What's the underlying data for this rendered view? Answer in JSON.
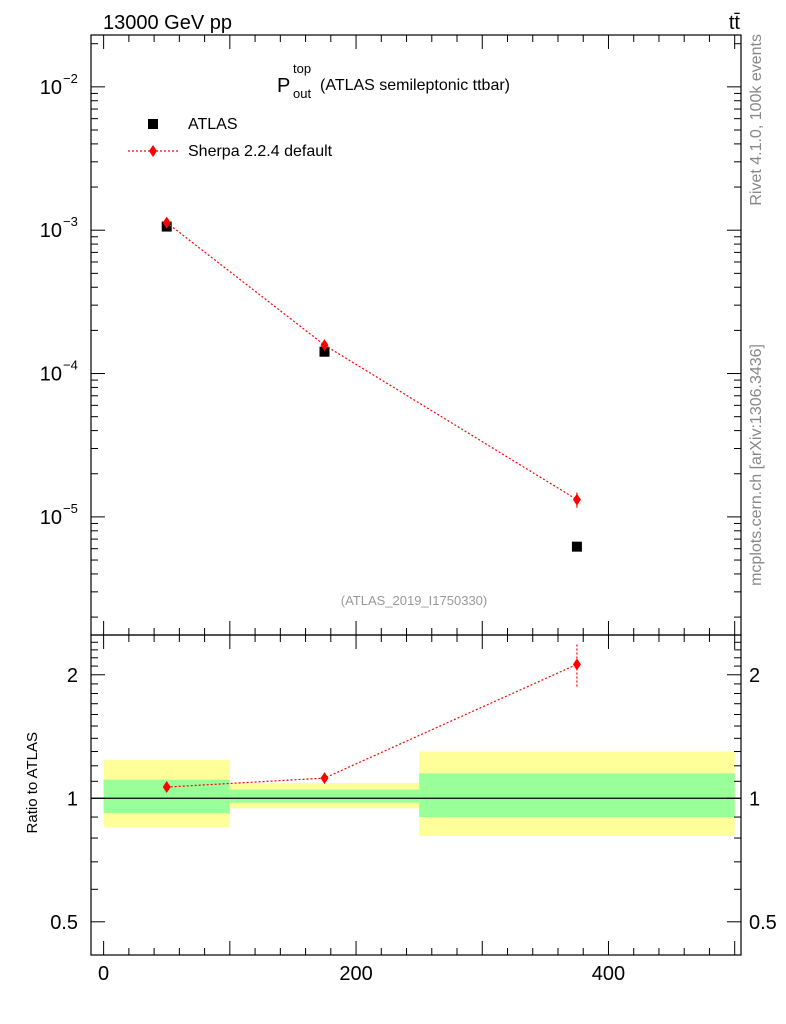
{
  "header": {
    "left": "13000 GeV pp",
    "right": "tt̄",
    "side_top": "Rivet 4.1.0,  100k events",
    "side_bottom": "mcplots.cern.ch [arXiv:1306.3436]"
  },
  "chart_data": [
    {
      "type": "scatter",
      "title_main": "P",
      "title_sup": "top",
      "title_sub": "out",
      "title_rest": "(ATLAS semileptonic ttbar)",
      "watermark": "(ATLAS_2019_I1750330)",
      "yscale": "log",
      "ylim": [
        1.5e-06,
        0.023
      ],
      "xlim": [
        -10,
        505
      ],
      "ytick_values": [
        1e-05,
        0.0001,
        0.001,
        0.01
      ],
      "ytick_bases": [
        "10",
        "10",
        "10",
        "10"
      ],
      "ytick_exps": [
        "−5",
        "−4",
        "−3",
        "−2"
      ],
      "legend": {
        "position": "top-left",
        "entries": [
          "ATLAS",
          "Sherpa 2.2.4 default"
        ]
      },
      "series": [
        {
          "name": "ATLAS",
          "x": [
            50,
            175,
            375
          ],
          "y": [
            0.00106,
            0.000142,
            6.2e-06
          ],
          "color": "#000000",
          "marker": "square"
        },
        {
          "name": "Sherpa 2.2.4 default",
          "x": [
            50,
            175,
            375
          ],
          "y": [
            0.00113,
            0.000158,
            1.32e-05
          ],
          "yerr": [
            3e-05,
            6e-06,
            1.6e-06
          ],
          "color": "#ff0000",
          "marker": "diamond",
          "line": "dotted"
        }
      ]
    },
    {
      "type": "scatter",
      "ylabel": "Ratio to ATLAS",
      "ylim": [
        0.415,
        2.5
      ],
      "yscale": "log",
      "ytick_values": [
        0.5,
        1,
        2
      ],
      "ytick_labels": [
        "0.5",
        "1",
        "2"
      ],
      "xtick_values": [
        0,
        200,
        400
      ],
      "xtick_labels": [
        "0",
        "200",
        "400"
      ],
      "bands": [
        {
          "x_lo": 0,
          "x_hi": 100,
          "inner": [
            0.92,
            1.11
          ],
          "outer": [
            0.85,
            1.24
          ]
        },
        {
          "x_lo": 100,
          "x_hi": 250,
          "inner": [
            0.975,
            1.05
          ],
          "outer": [
            0.945,
            1.09
          ]
        },
        {
          "x_lo": 250,
          "x_hi": 500,
          "inner": [
            0.9,
            1.15
          ],
          "outer": [
            0.81,
            1.3
          ]
        }
      ],
      "series": [
        {
          "name": "Sherpa 2.2.4 default",
          "x": [
            50,
            175,
            375
          ],
          "y": [
            1.065,
            1.12,
            2.12
          ],
          "yerr": [
            0.02,
            0.03,
            0.25
          ],
          "color": "#ff0000"
        }
      ],
      "colors": {
        "inner_band": "#99ff99",
        "outer_band": "#ffff99"
      }
    }
  ]
}
